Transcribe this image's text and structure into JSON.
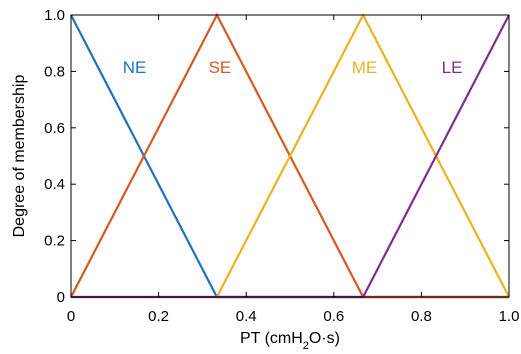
{
  "chart_data": {
    "type": "line",
    "title": "",
    "xlabel": "PT (cmH2O·s)",
    "ylabel": "Degree of membership",
    "xlim": [
      0,
      1
    ],
    "ylim": [
      0,
      1
    ],
    "x_ticks": [
      0,
      0.2,
      0.4,
      0.6,
      0.8,
      1
    ],
    "x_tick_labels": [
      "0",
      "0.2",
      "0.4",
      "0.6",
      "0.8",
      "1.0"
    ],
    "y_ticks": [
      0,
      0.2,
      0.4,
      0.6,
      0.8,
      1
    ],
    "y_tick_labels": [
      "0",
      "0.2",
      "0.4",
      "0.6",
      "0.8",
      "1.0"
    ],
    "grid": false,
    "legend": "labels placed inline near each curve",
    "series": [
      {
        "name": "NE",
        "color": "#1f72bd",
        "points": [
          [
            0,
            1
          ],
          [
            0.333,
            0
          ],
          [
            1,
            0
          ]
        ],
        "label_at": [
          0.145,
          0.795
        ]
      },
      {
        "name": "SE",
        "color": "#d55a20",
        "points": [
          [
            0,
            0
          ],
          [
            0.333,
            1
          ],
          [
            0.667,
            0
          ],
          [
            1,
            0
          ]
        ],
        "label_at": [
          0.34,
          0.795
        ]
      },
      {
        "name": "ME",
        "color": "#edb120",
        "points": [
          [
            0,
            0
          ],
          [
            0.333,
            0
          ],
          [
            0.667,
            1
          ],
          [
            1,
            0
          ]
        ],
        "label_at": [
          0.67,
          0.795
        ]
      },
      {
        "name": "LE",
        "color": "#7e2f8e",
        "points": [
          [
            0,
            0
          ],
          [
            0.667,
            0
          ],
          [
            1,
            1
          ]
        ],
        "label_at": [
          0.87,
          0.795
        ]
      }
    ]
  }
}
